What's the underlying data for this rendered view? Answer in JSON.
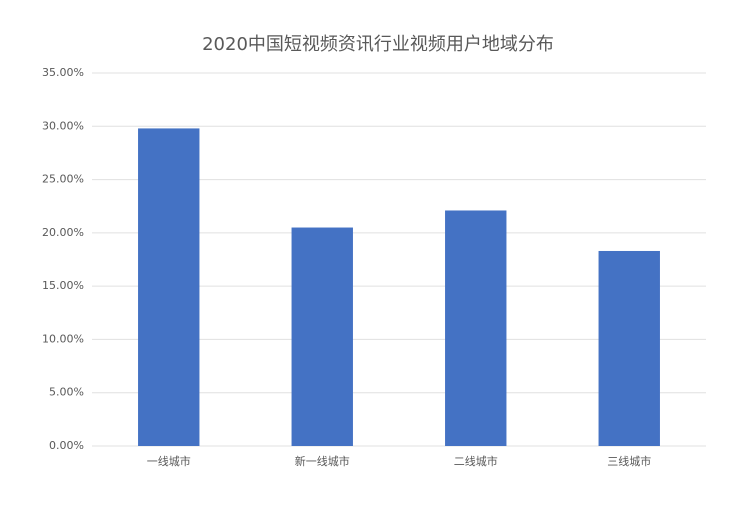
{
  "chart_data": {
    "type": "bar",
    "title": "2020中国短视频资讯行业视频用户地域分布",
    "categories": [
      "一线城市",
      "新一线城市",
      "二线城市",
      "三线城市"
    ],
    "values": [
      29.8,
      20.5,
      22.1,
      18.3
    ],
    "color": "#4472c4",
    "ylim": [
      0,
      35
    ],
    "yticks": [
      {
        "value": 0,
        "label": "0.00%"
      },
      {
        "value": 5,
        "label": "5.00%"
      },
      {
        "value": 10,
        "label": "10.00%"
      },
      {
        "value": 15,
        "label": "15.00%"
      },
      {
        "value": 20,
        "label": "20.00%"
      },
      {
        "value": 25,
        "label": "25.00%"
      },
      {
        "value": 30,
        "label": "30.00%"
      },
      {
        "value": 35,
        "label": "35.00%"
      }
    ],
    "grid": true
  }
}
